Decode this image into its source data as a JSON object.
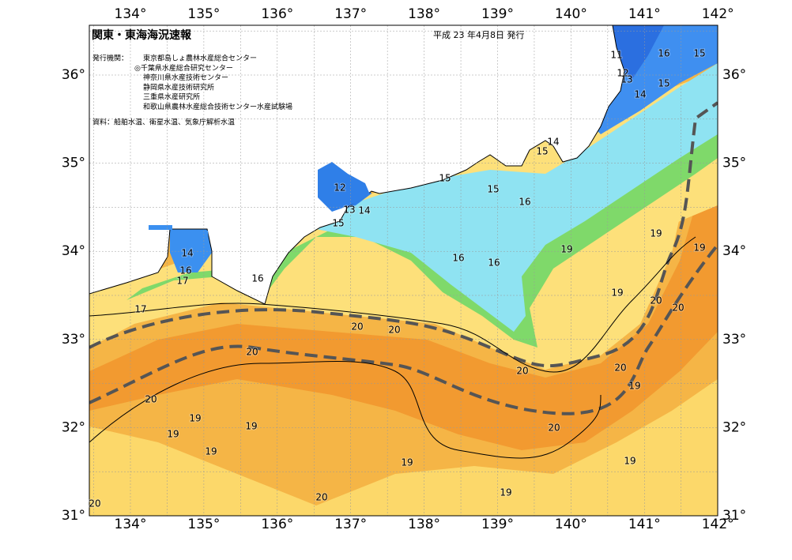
{
  "title": "関東・東海海況速報",
  "issue_date": "平成 23 年4月8日 発行",
  "institutions_label": "発行機関：",
  "institutions": [
    "東京都島しょ農林水産総合センター",
    "◎千葉県水産総合研究センター",
    "神奈川県水産技術センター",
    "静岡県水産技術研究所",
    "三重県水産研究所",
    "和歌山県農林水産総合技術センター水産試験場"
  ],
  "source": "資料：船舶水温、衛星水温、気象庁解析水温",
  "lon_labels": [
    "134°",
    "135°",
    "136°",
    "137°",
    "138°",
    "139°",
    "140°",
    "141°",
    "142°"
  ],
  "lat_labels": [
    "36°",
    "35°",
    "34°",
    "33°",
    "32°",
    "31°"
  ],
  "contour_labels": [
    "11",
    "16",
    "15",
    "12",
    "13",
    "15",
    "14",
    "14",
    "15",
    "15",
    "15",
    "12",
    "16",
    "13",
    "14",
    "15",
    "19",
    "19",
    "19",
    "14",
    "16",
    "16",
    "16",
    "16",
    "17",
    "19",
    "20",
    "20",
    "17",
    "20",
    "20",
    "20",
    "20",
    "20",
    "19",
    "20",
    "19",
    "19",
    "20",
    "19",
    "19",
    "19",
    "19",
    "19",
    "20",
    "20"
  ]
}
